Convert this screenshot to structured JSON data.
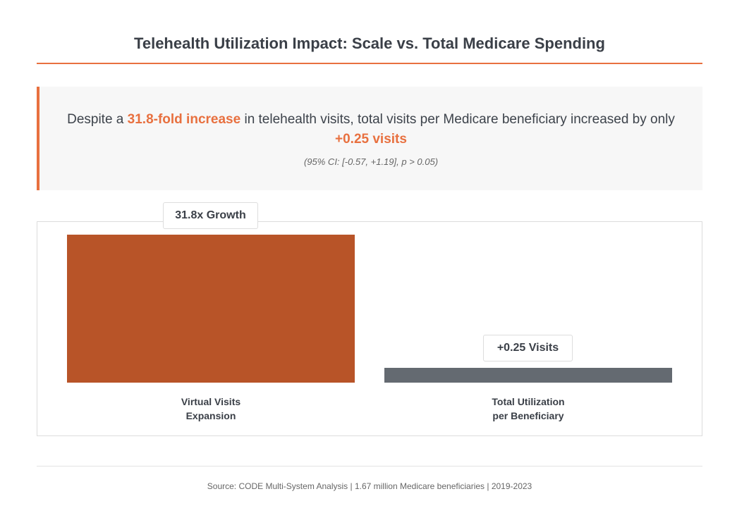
{
  "chart_data": {
    "type": "bar",
    "title": "Telehealth Utilization Impact: Scale vs. Total Medicare Spending",
    "categories": [
      "Virtual Visits Expansion",
      "Total Utilization per Beneficiary"
    ],
    "category_lines": [
      [
        "Virtual Visits",
        "Expansion"
      ],
      [
        "Total Utilization",
        "per Beneficiary"
      ]
    ],
    "values": [
      31.8,
      0.25
    ],
    "value_units": [
      "fold increase",
      "visits"
    ],
    "data_labels": [
      "31.8x Growth",
      "+0.25 Visits"
    ],
    "colors": [
      "#b85428",
      "#646a71"
    ],
    "xlabel": "",
    "ylabel": "",
    "grid": false
  },
  "callout": {
    "pre": "Despite a ",
    "hl1": "31.8-fold increase",
    "mid": " in telehealth visits, total visits per Medicare beneficiary increased by only ",
    "hl2": "+0.25 visits",
    "ci": "(95% CI: [-0.57, +1.19], p > 0.05)"
  },
  "accent": "#e8703f",
  "source": "Source: CODE Multi-System Analysis | 1.67 million Medicare beneficiaries | 2019-2023"
}
